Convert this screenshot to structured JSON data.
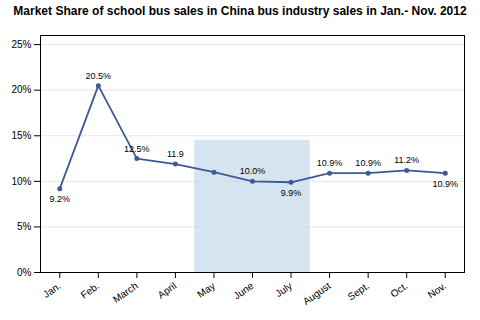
{
  "chart_data": {
    "type": "line",
    "title": "Market Share of school bus sales in China bus industry sales in Jan.- Nov. 2012",
    "categories": [
      "Jan.",
      "Feb.",
      "March",
      "April",
      "May",
      "June",
      "July",
      "August",
      "Sept.",
      "Oct.",
      "Nov."
    ],
    "values": [
      9.2,
      20.5,
      12.5,
      11.9,
      11.0,
      10.0,
      9.9,
      10.9,
      10.9,
      11.2,
      10.9
    ],
    "value_labels": [
      "9.2%",
      "20.5%",
      "12.5%",
      "11.9",
      null,
      "10.0%",
      "9.9%",
      "10.9%",
      "10.9%",
      "11.2%",
      "10.9%"
    ],
    "data_labels": true,
    "color": "#3d5a96",
    "marker": "circle",
    "ylim": [
      0,
      26
    ],
    "yticks": [
      {
        "value": 0,
        "label": "0%"
      },
      {
        "value": 5,
        "label": "5%"
      },
      {
        "value": 10,
        "label": "10%"
      },
      {
        "value": 15,
        "label": "15%"
      },
      {
        "value": 20,
        "label": "20%"
      },
      {
        "value": 25,
        "label": "25%"
      }
    ],
    "grid": true,
    "highlight": {
      "from": "May",
      "to": "July",
      "ylim": [
        0,
        14.5
      ],
      "color": "#c5d8e8"
    }
  }
}
